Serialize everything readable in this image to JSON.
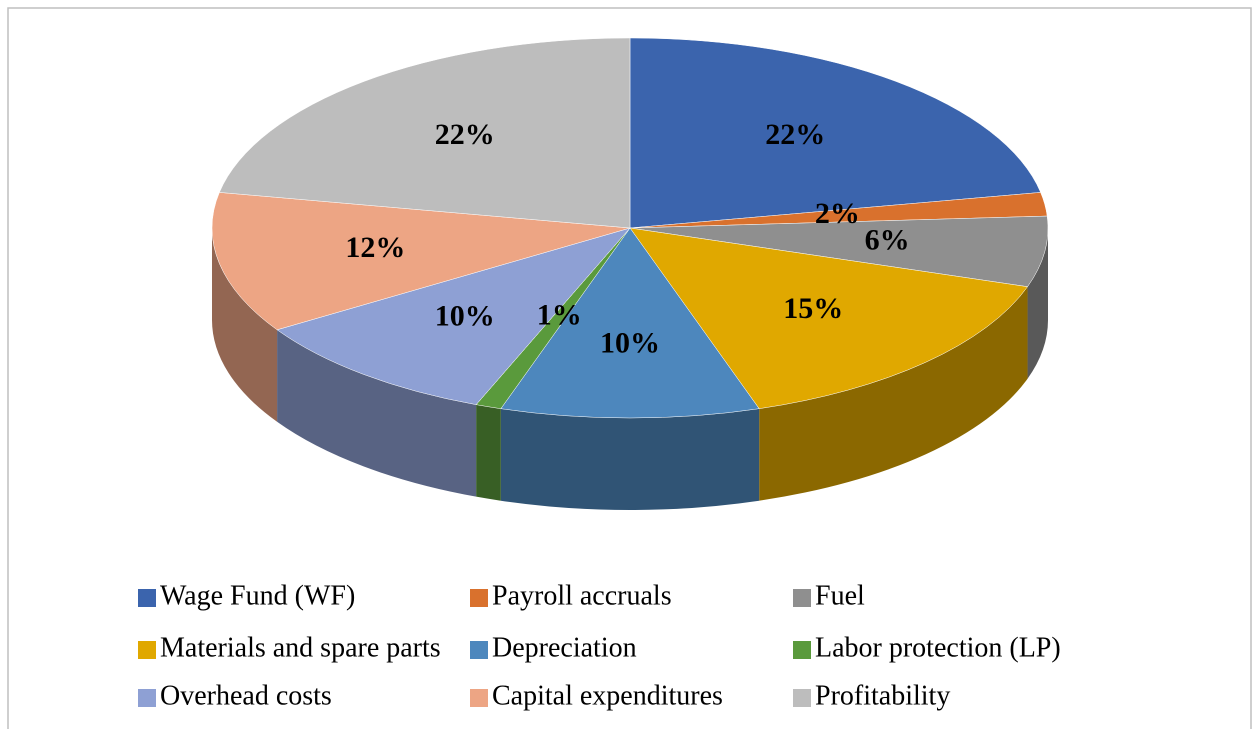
{
  "chart_data": {
    "type": "pie",
    "three_d": true,
    "categories": [
      "Wage Fund (WF)",
      "Payroll accruals",
      "Fuel",
      "Materials and spare parts",
      "Depreciation",
      "Labor protection (LP)",
      "Overhead costs",
      "Capital expenditures",
      "Profitability"
    ],
    "values": [
      22,
      2,
      6,
      15,
      10,
      1,
      10,
      12,
      22
    ],
    "value_labels": [
      "22%",
      "2%",
      "6%",
      "15%",
      "10%",
      "1%",
      "10%",
      "12%",
      "22%"
    ],
    "colors": [
      "#3b64ad",
      "#d9712d",
      "#8f8f8f",
      "#e0a800",
      "#4d87bd",
      "#5a9a3c",
      "#8ea0d4",
      "#eda584",
      "#bdbdbd"
    ],
    "legend": "bottom"
  }
}
